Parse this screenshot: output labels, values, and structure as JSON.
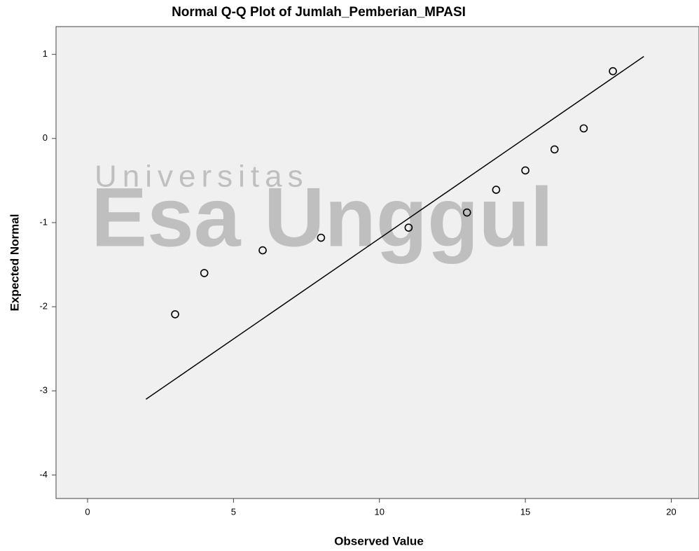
{
  "chart_data": {
    "type": "scatter",
    "title": "Normal Q-Q Plot of Jumlah_Pemberian_MPASI",
    "x_label": "Observed Value",
    "y_label": "Expected Normal",
    "watermark": [
      "Universitas",
      "Esa Unggul"
    ],
    "x": [
      3,
      4,
      6,
      8,
      11,
      13,
      14,
      15,
      16,
      17,
      18
    ],
    "values": [
      -2.09,
      -1.6,
      -1.33,
      -1.18,
      -1.06,
      -0.88,
      -0.61,
      -0.38,
      -0.13,
      0.12,
      0.8
    ],
    "color": "#000000",
    "reference_line": {
      "x": [
        2,
        19.06
      ],
      "y": [
        -3.1,
        0.975
      ]
    },
    "xlim": [
      -1.08,
      20.95
    ],
    "ylim": [
      -4.28,
      1.33
    ],
    "xticks": [
      0,
      5,
      10,
      15,
      20
    ],
    "yticks": [
      1,
      0,
      -1,
      -2,
      -3,
      -4
    ]
  }
}
